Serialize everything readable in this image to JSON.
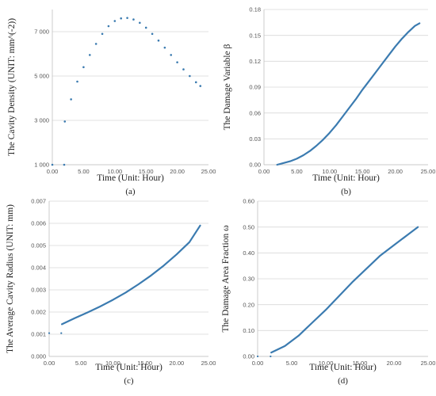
{
  "chart_data": [
    {
      "id": "a",
      "type": "scatter",
      "panel_label": "(a)",
      "xlabel": "Time (Unit: Hour)",
      "ylabel": "The Cavity Density (UNIT: mm^(-2))",
      "xlim": [
        0,
        25
      ],
      "ylim": [
        1000,
        8000
      ],
      "xticks": [
        "0.00",
        "5.00",
        "10.00",
        "15.00",
        "20.00",
        "25.00"
      ],
      "xtick_values": [
        0,
        5,
        10,
        15,
        20,
        25
      ],
      "yticks": [
        "1 000",
        "3 000",
        "5 000",
        "7 000"
      ],
      "ytick_values": [
        1000,
        3000,
        5000,
        7000
      ],
      "grid": "horizontal",
      "marker": "dots",
      "color": "#3b7bb0",
      "points": [
        [
          0,
          1000
        ],
        [
          1.9,
          1000
        ],
        [
          2,
          2950
        ],
        [
          3,
          3950
        ],
        [
          4,
          4750
        ],
        [
          5,
          5400
        ],
        [
          6,
          5950
        ],
        [
          7,
          6450
        ],
        [
          8,
          6900
        ],
        [
          9,
          7250
        ],
        [
          10,
          7480
        ],
        [
          11,
          7600
        ],
        [
          12,
          7620
        ],
        [
          13,
          7550
        ],
        [
          14,
          7400
        ],
        [
          15,
          7180
        ],
        [
          16,
          6900
        ],
        [
          17,
          6600
        ],
        [
          18,
          6280
        ],
        [
          19,
          5950
        ],
        [
          20,
          5620
        ],
        [
          21,
          5300
        ],
        [
          22,
          5000
        ],
        [
          23,
          4720
        ],
        [
          23.7,
          4550
        ]
      ]
    },
    {
      "id": "b",
      "type": "line",
      "panel_label": "(b)",
      "xlabel": "Time (Unit: Hour)",
      "ylabel": "The Damage Variable β",
      "xlim": [
        0,
        25
      ],
      "ylim": [
        0,
        0.18
      ],
      "xticks": [
        "0.00",
        "5.00",
        "10.00",
        "15.00",
        "20.00",
        "25.00"
      ],
      "xtick_values": [
        0,
        5,
        10,
        15,
        20,
        25
      ],
      "yticks": [
        "0.00",
        "0.03",
        "0.06",
        "0.09",
        "0.12",
        "0.15",
        "0.18"
      ],
      "ytick_values": [
        0,
        0.03,
        0.06,
        0.09,
        0.12,
        0.15,
        0.18
      ],
      "grid": "horizontal",
      "color": "#3b7bb0",
      "points": [
        [
          2,
          0
        ],
        [
          3,
          0.002
        ],
        [
          4,
          0.004
        ],
        [
          5,
          0.007
        ],
        [
          6,
          0.011
        ],
        [
          7,
          0.016
        ],
        [
          8,
          0.022
        ],
        [
          9,
          0.029
        ],
        [
          10,
          0.037
        ],
        [
          11,
          0.046
        ],
        [
          12,
          0.056
        ],
        [
          13,
          0.066
        ],
        [
          14,
          0.076
        ],
        [
          15,
          0.087
        ],
        [
          16,
          0.097
        ],
        [
          17,
          0.107
        ],
        [
          18,
          0.117
        ],
        [
          19,
          0.127
        ],
        [
          20,
          0.137
        ],
        [
          21,
          0.146
        ],
        [
          22,
          0.154
        ],
        [
          23,
          0.161
        ],
        [
          23.7,
          0.164
        ]
      ]
    },
    {
      "id": "c",
      "type": "line",
      "panel_label": "(c)",
      "xlabel": "Time (Unit: Hour)",
      "ylabel": "The Average Cavity Radius (UNIT: mm)",
      "xlim": [
        0,
        25
      ],
      "ylim": [
        0,
        0.007
      ],
      "xticks": [
        "0.00",
        "5.00",
        "10.00",
        "15.00",
        "20.00",
        "25.00"
      ],
      "xtick_values": [
        0,
        5,
        10,
        15,
        20,
        25
      ],
      "yticks": [
        "0.000",
        "0.001",
        "0.002",
        "0.003",
        "0.004",
        "0.005",
        "0.006",
        "0.007"
      ],
      "ytick_values": [
        0,
        0.001,
        0.002,
        0.003,
        0.004,
        0.005,
        0.006,
        0.007
      ],
      "grid": "horizontal",
      "color": "#3b7bb0",
      "isolated_points": [
        [
          0,
          0.00105
        ],
        [
          1.9,
          0.00105
        ]
      ],
      "points": [
        [
          2,
          0.00145
        ],
        [
          4,
          0.00172
        ],
        [
          6,
          0.00198
        ],
        [
          8,
          0.00225
        ],
        [
          10,
          0.00255
        ],
        [
          12,
          0.00288
        ],
        [
          14,
          0.00325
        ],
        [
          16,
          0.00365
        ],
        [
          18,
          0.0041
        ],
        [
          20,
          0.0046
        ],
        [
          22,
          0.00515
        ],
        [
          23.7,
          0.0059
        ]
      ]
    },
    {
      "id": "d",
      "type": "line",
      "panel_label": "(d)",
      "xlabel": "Time (Unit: Hour)",
      "ylabel": "The Damage Area Fraction ω",
      "xlim": [
        0,
        25
      ],
      "ylim": [
        0,
        0.6
      ],
      "xticks": [
        "0.00",
        "5.00",
        "10.00",
        "15.00",
        "20.00",
        "25.00"
      ],
      "xtick_values": [
        0,
        5,
        10,
        15,
        20,
        25
      ],
      "yticks": [
        "0.00",
        "0.10",
        "0.20",
        "0.30",
        "0.40",
        "0.50",
        "0.60"
      ],
      "ytick_values": [
        0,
        0.1,
        0.2,
        0.3,
        0.4,
        0.5,
        0.6
      ],
      "grid": "horizontal",
      "color": "#3b7bb0",
      "isolated_points": [
        [
          0,
          0
        ],
        [
          1.9,
          0
        ]
      ],
      "points": [
        [
          2,
          0.015
        ],
        [
          4,
          0.04
        ],
        [
          6,
          0.08
        ],
        [
          8,
          0.13
        ],
        [
          10,
          0.18
        ],
        [
          12,
          0.235
        ],
        [
          14,
          0.29
        ],
        [
          16,
          0.34
        ],
        [
          18,
          0.39
        ],
        [
          20,
          0.43
        ],
        [
          22,
          0.47
        ],
        [
          23.5,
          0.5
        ]
      ]
    }
  ]
}
